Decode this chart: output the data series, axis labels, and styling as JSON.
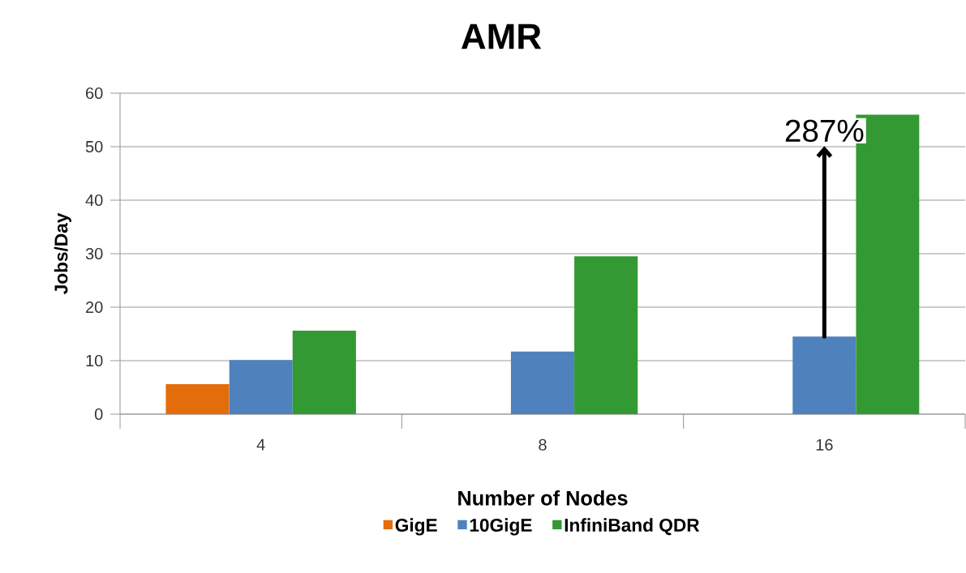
{
  "chart_data": {
    "type": "bar",
    "title": "AMR",
    "xlabel": "Number of Nodes",
    "ylabel": "Jobs/Day",
    "categories": [
      "4",
      "8",
      "16"
    ],
    "series": [
      {
        "name": "GigE",
        "color": "#e46c0a",
        "values": [
          5.6,
          null,
          null
        ]
      },
      {
        "name": "10GigE",
        "color": "#4f81bd",
        "values": [
          10.1,
          11.7,
          14.5
        ]
      },
      {
        "name": "InfiniBand QDR",
        "color": "#339933",
        "values": [
          15.6,
          29.5,
          56
        ]
      }
    ],
    "ylim": [
      0,
      60
    ],
    "yticks": [
      0,
      10,
      20,
      30,
      40,
      50,
      60
    ],
    "grid": "y",
    "legend": "bottom",
    "annotations": [
      {
        "text": "287%",
        "x": "16",
        "y": 14.5
      }
    ]
  }
}
